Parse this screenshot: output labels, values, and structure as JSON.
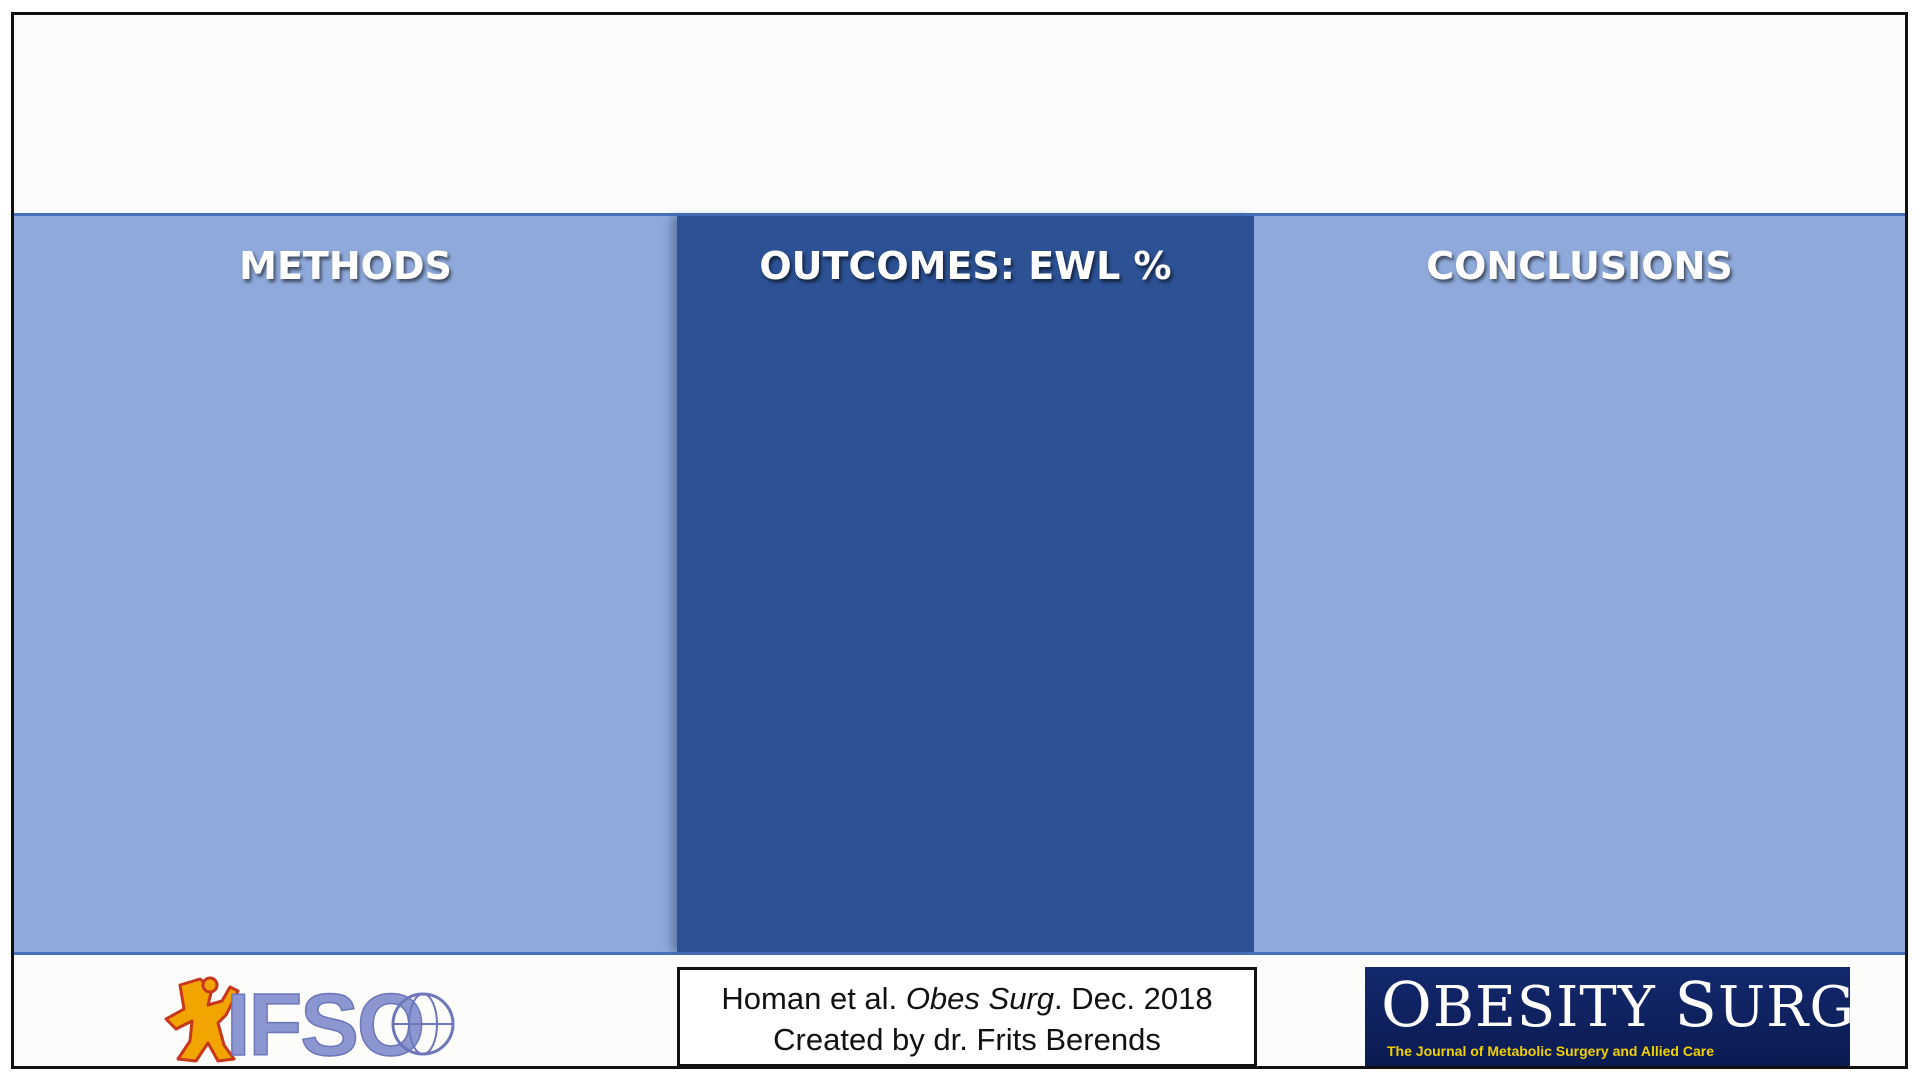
{
  "panels": {
    "methods_title": "METHODS",
    "outcomes_title": "OUTCOMES: EWL %",
    "conclusions_title": "CONCLUSIONS"
  },
  "footer": {
    "ifso_logo_text": "IFSO",
    "citation": {
      "authors": "Homan et al.",
      "journal": "Obes Surg",
      "date": ". Dec. 2018",
      "credit": "Created by dr. Frits Berends"
    },
    "journal_logo": {
      "title_first_cap": "O",
      "title_first_rest": "BESITY",
      "title_second_cap": "S",
      "title_second_rest": "URGERY",
      "subtitle": "The Journal of Metabolic Surgery and Allied Care"
    }
  },
  "colors": {
    "panel_light": "#8ea9da",
    "panel_dark": "#2c5194",
    "panel_border": "#4a70c0",
    "journal_blue": "#0d1f5c",
    "journal_yellow": "#f2d000"
  }
}
